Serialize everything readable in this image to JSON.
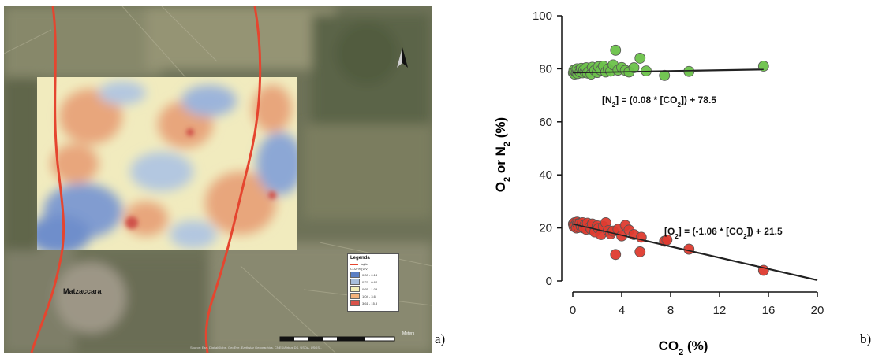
{
  "panel_labels": {
    "a": "a)",
    "b": "b)"
  },
  "map": {
    "town_label": "Matzaccara",
    "legend": {
      "title": "Legenda",
      "fault_label": "faglia",
      "scale_title": "CO2 % (V/V)",
      "classes": [
        {
          "label": "0.00 - 0.14",
          "color": "#5b7fc4"
        },
        {
          "label": "0.27 - 0.64",
          "color": "#a9c0dc"
        },
        {
          "label": "0.65 - 1.03",
          "color": "#f4f0b8"
        },
        {
          "label": "1.04 - 3.6",
          "color": "#f3b27c"
        },
        {
          "label": "3.61 - 15.8",
          "color": "#d9534a"
        }
      ]
    },
    "scale_label": "Meters",
    "attribution": "Source: Esri, DigitalGlobe, GeoEye, Earthstar Geographics, CNES/Airbus DS, USDA, USGS..."
  },
  "chart_data": {
    "type": "scatter",
    "xlabel": "CO2 (%)",
    "ylabel": "O2 or N2 (%)",
    "xlim": [
      0,
      20
    ],
    "ylim": [
      0,
      100
    ],
    "xticks": [
      0,
      4,
      8,
      12,
      16,
      20
    ],
    "yticks": [
      0,
      20,
      40,
      60,
      80,
      100
    ],
    "series": [
      {
        "color": "#6cc24a",
        "points": [
          [
            0.05,
            78.5
          ],
          [
            0.1,
            79.5
          ],
          [
            0.15,
            78
          ],
          [
            0.2,
            79
          ],
          [
            0.3,
            78.6
          ],
          [
            0.35,
            80
          ],
          [
            0.4,
            78.2
          ],
          [
            0.5,
            79.3
          ],
          [
            0.6,
            78.8
          ],
          [
            0.7,
            80.2
          ],
          [
            0.8,
            78.5
          ],
          [
            0.9,
            79.6
          ],
          [
            1.0,
            78.9
          ],
          [
            1.1,
            80.4
          ],
          [
            1.2,
            78.4
          ],
          [
            1.4,
            79.2
          ],
          [
            1.5,
            78
          ],
          [
            1.6,
            80.6
          ],
          [
            1.8,
            79.4
          ],
          [
            2.0,
            78.6
          ],
          [
            2.1,
            80.8
          ],
          [
            2.3,
            79.5
          ],
          [
            2.5,
            81
          ],
          [
            2.7,
            78.8
          ],
          [
            2.9,
            80
          ],
          [
            3.1,
            79.1
          ],
          [
            3.3,
            81.5
          ],
          [
            3.5,
            87
          ],
          [
            3.7,
            79.5
          ],
          [
            4.0,
            80.5
          ],
          [
            4.3,
            79.4
          ],
          [
            4.6,
            78.8
          ],
          [
            5.0,
            80.4
          ],
          [
            5.5,
            84
          ],
          [
            6.0,
            79.2
          ],
          [
            7.5,
            77.5
          ],
          [
            9.5,
            79
          ],
          [
            15.6,
            81
          ]
        ]
      },
      {
        "color": "#de3b2f",
        "points": [
          [
            0.05,
            21.5
          ],
          [
            0.1,
            20.5
          ],
          [
            0.15,
            22
          ],
          [
            0.2,
            21
          ],
          [
            0.3,
            20
          ],
          [
            0.35,
            22.2
          ],
          [
            0.4,
            21.5
          ],
          [
            0.5,
            20.2
          ],
          [
            0.6,
            21.8
          ],
          [
            0.7,
            20.5
          ],
          [
            0.8,
            22
          ],
          [
            0.9,
            20
          ],
          [
            1.0,
            21.2
          ],
          [
            1.1,
            19.5
          ],
          [
            1.2,
            21.8
          ],
          [
            1.4,
            20.3
          ],
          [
            1.5,
            19.6
          ],
          [
            1.6,
            21.5
          ],
          [
            1.8,
            18.5
          ],
          [
            2.0,
            20.8
          ],
          [
            2.1,
            19.8
          ],
          [
            2.3,
            17.5
          ],
          [
            2.5,
            20.5
          ],
          [
            2.7,
            22
          ],
          [
            2.9,
            19
          ],
          [
            3.1,
            17.8
          ],
          [
            3.3,
            18.8
          ],
          [
            3.5,
            10
          ],
          [
            3.7,
            19.5
          ],
          [
            4.0,
            17
          ],
          [
            4.3,
            21
          ],
          [
            4.6,
            19.2
          ],
          [
            5.0,
            17.5
          ],
          [
            5.5,
            11
          ],
          [
            5.6,
            16.5
          ],
          [
            7.5,
            15
          ],
          [
            7.7,
            15.5
          ],
          [
            9.5,
            12
          ],
          [
            15.6,
            4
          ]
        ]
      }
    ],
    "fits": [
      {
        "slope": 0.08,
        "intercept": 78.5,
        "x_range": [
          0,
          15.6
        ],
        "equation": "[N2] = (0.08 * [CO2]) + 78.5"
      },
      {
        "slope": -1.06,
        "intercept": 21.5,
        "x_range": [
          0,
          20
        ],
        "equation": "[O2] = (-1.06 * [CO2]) + 21.5"
      }
    ]
  }
}
